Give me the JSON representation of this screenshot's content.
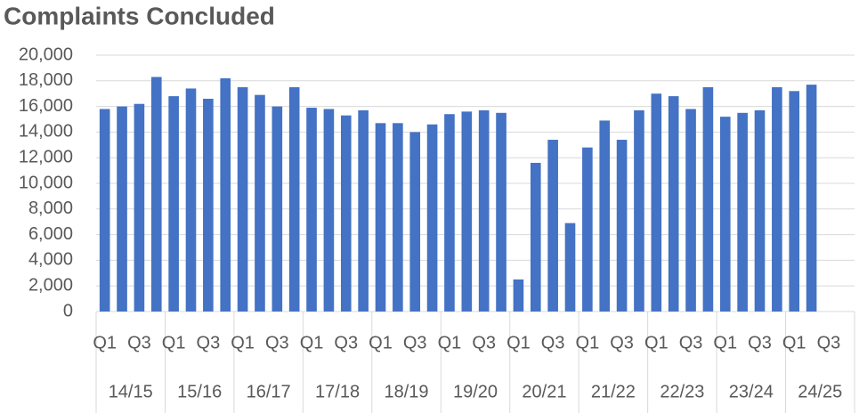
{
  "chart_data": {
    "type": "bar",
    "title": "Complaints Concluded",
    "categories": [
      "Q1",
      null,
      "Q3",
      null,
      "Q1",
      null,
      "Q3",
      null,
      "Q1",
      null,
      "Q3",
      null,
      "Q1",
      null,
      "Q3",
      null,
      "Q1",
      null,
      "Q3",
      null,
      "Q1",
      null,
      "Q3",
      null,
      "Q1",
      null,
      "Q3",
      null,
      "Q1",
      null,
      "Q3",
      null,
      "Q1",
      null,
      "Q3",
      null,
      "Q1",
      null,
      "Q3",
      null,
      "Q1",
      null,
      "Q3",
      null
    ],
    "groups": [
      "14/15",
      "15/16",
      "16/17",
      "17/18",
      "18/19",
      "19/20",
      "20/21",
      "21/22",
      "22/23",
      "23/24",
      "24/25"
    ],
    "values": [
      15800,
      16000,
      16200,
      18300,
      16800,
      17400,
      16600,
      18200,
      17500,
      16900,
      16000,
      17500,
      15900,
      15800,
      15300,
      15700,
      14700,
      14700,
      14000,
      14600,
      15400,
      15600,
      15700,
      15500,
      2500,
      11600,
      13400,
      6900,
      12800,
      14900,
      13400,
      15700,
      17000,
      16800,
      15800,
      17500,
      15200,
      15500,
      15700,
      17500,
      17200,
      17700,
      null,
      null
    ],
    "color": "#4472c4",
    "ylim": [
      0,
      20000
    ],
    "yticks": [
      0,
      {
        "value": 2000,
        "label": "2,000"
      },
      {
        "value": 4000,
        "label": "4,000"
      },
      {
        "value": 6000,
        "label": "6,000"
      },
      {
        "value": 8000,
        "label": "8,000"
      },
      {
        "value": 10000,
        "label": "10,000"
      },
      {
        "value": 12000,
        "label": "12,000"
      },
      {
        "value": 14000,
        "label": "14,000"
      },
      {
        "value": 16000,
        "label": "16,000"
      },
      {
        "value": 18000,
        "label": "18,000"
      },
      {
        "value": 20000,
        "label": "20,000"
      }
    ],
    "grid": true
  }
}
